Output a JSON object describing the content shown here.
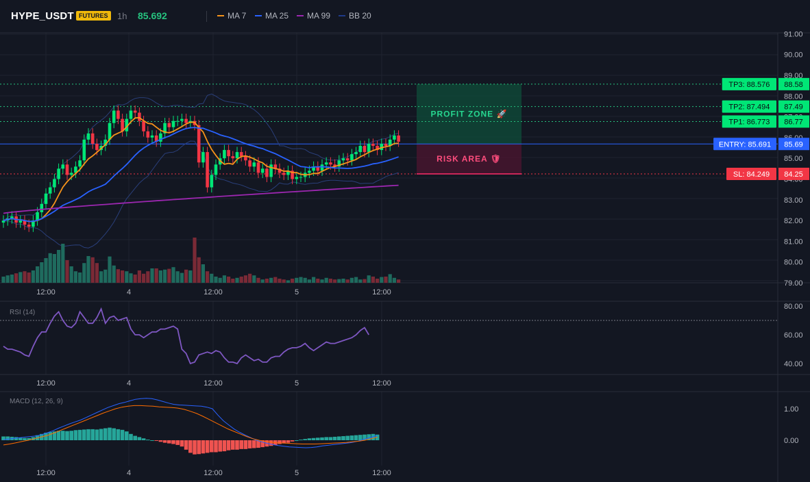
{
  "header": {
    "symbol": "HYPE_USDT",
    "badge": "FUTURES",
    "interval": "1h",
    "price": "85.692",
    "legend": [
      {
        "label": "MA 7",
        "color": "#f7931a"
      },
      {
        "label": "MA 25",
        "color": "#2962ff"
      },
      {
        "label": "MA 99",
        "color": "#9c27b0"
      },
      {
        "label": "BB 20",
        "color": "#1e3a8a"
      }
    ]
  },
  "colors": {
    "up": "#26a69a",
    "down": "#ef5350",
    "candle_up": "#00e676",
    "candle_down": "#f23645",
    "bg": "#131722"
  },
  "zones": {
    "profit_label": "PROFIT ZONE 🚀",
    "risk_label": "RISK AREA 🛡"
  },
  "levels": {
    "tp3": {
      "tag": "TP3: 88.576",
      "axis": "88.58",
      "value": 88.576
    },
    "tp2": {
      "tag": "TP2: 87.494",
      "axis": "87.49",
      "value": 87.494
    },
    "tp1": {
      "tag": "TP1: 86.773",
      "axis": "86.77",
      "value": 86.773
    },
    "entry": {
      "tag": "ENTRY: 85.691",
      "axis": "85.69",
      "value": 85.691
    },
    "sl": {
      "tag": "SL: 84.249",
      "axis": "84.25",
      "value": 84.249
    }
  },
  "x_labels": [
    "12:00",
    "4",
    "12:00",
    "5",
    "12:00"
  ],
  "chart_data": [
    {
      "type": "candlestick",
      "title": "HYPE_USDT 1h",
      "ylim": [
        79.0,
        91.0
      ],
      "y_ticks": [
        "91.00",
        "90.00",
        "89.00",
        "88.00",
        "87.00",
        "86.00",
        "85.00",
        "84.00",
        "83.00",
        "82.00",
        "81.00",
        "80.00",
        "79.00"
      ],
      "close": [
        82.0,
        82.1,
        82.2,
        81.9,
        82.0,
        81.8,
        81.7,
        82.0,
        82.4,
        82.8,
        83.3,
        83.6,
        84.0,
        84.5,
        84.7,
        84.2,
        84.3,
        84.6,
        84.9,
        85.9,
        86.2,
        85.7,
        85.4,
        85.6,
        85.9,
        86.7,
        87.3,
        86.9,
        86.3,
        86.9,
        87.3,
        87.2,
        86.8,
        86.3,
        86.0,
        86.1,
        85.8,
        86.2,
        86.7,
        86.5,
        86.8,
        86.8,
        86.9,
        86.7,
        86.8,
        86.6,
        84.8,
        85.3,
        83.6,
        84.2,
        84.7,
        85.0,
        85.4,
        85.1,
        85.0,
        85.3,
        85.1,
        84.9,
        84.6,
        84.8,
        84.3,
        84.5,
        84.1,
        84.7,
        84.5,
        84.3,
        84.2,
        84.4,
        84.0,
        84.1,
        84.1,
        84.3,
        84.4,
        84.6,
        84.4,
        84.7,
        84.8,
        84.7,
        84.6,
        84.9,
        85.0,
        84.9,
        85.2,
        85.3,
        85.6,
        85.3,
        85.7,
        85.6,
        85.4,
        85.7,
        85.6,
        85.9,
        86.1,
        85.8
      ],
      "volume": [
        15,
        18,
        20,
        23,
        26,
        28,
        25,
        30,
        40,
        50,
        60,
        72,
        70,
        80,
        95,
        55,
        40,
        28,
        25,
        48,
        65,
        62,
        48,
        28,
        32,
        64,
        42,
        33,
        30,
        28,
        23,
        20,
        30,
        22,
        28,
        35,
        35,
        30,
        32,
        34,
        38,
        28,
        24,
        32,
        30,
        110,
        62,
        45,
        28,
        22,
        15,
        12,
        18,
        15,
        10,
        12,
        15,
        18,
        22,
        18,
        12,
        8,
        10,
        12,
        14,
        10,
        8,
        6,
        10,
        12,
        14,
        12,
        8,
        14,
        10,
        8,
        12,
        10,
        8,
        9,
        10,
        8,
        12,
        14,
        8,
        9,
        18,
        15,
        10,
        14,
        15,
        21,
        12,
        8
      ],
      "series": [
        {
          "name": "MA 7"
        },
        {
          "name": "MA 25"
        },
        {
          "name": "MA 99"
        },
        {
          "name": "BB 20"
        }
      ]
    },
    {
      "type": "line",
      "title": "RSI (14)",
      "ylim": [
        33,
        83
      ],
      "y_ticks": [
        "80.00",
        "60.00",
        "40.00"
      ],
      "overbought": 70,
      "values": [
        52,
        50,
        50,
        49,
        48,
        46,
        45,
        52,
        58,
        62,
        62,
        68,
        73,
        76,
        70,
        66,
        65,
        68,
        76,
        72,
        68,
        68,
        72,
        78,
        68,
        72,
        73,
        70,
        71,
        72,
        64,
        60,
        60,
        58,
        60,
        62,
        62,
        64,
        64,
        65,
        66,
        64,
        50,
        47,
        40,
        41,
        46,
        47,
        48,
        47,
        49,
        48,
        44,
        41,
        41,
        40,
        44,
        46,
        44,
        42,
        43,
        41,
        41,
        44,
        45,
        45,
        48,
        50,
        51,
        51,
        52,
        54,
        51,
        49,
        51,
        53,
        55,
        54,
        54,
        55,
        56,
        57,
        58,
        60,
        63,
        65,
        60
      ]
    },
    {
      "type": "bar",
      "title": "MACD (12, 26, 9)",
      "ylim": [
        -0.8,
        1.7
      ],
      "y_ticks": [
        "1.00",
        "0.00"
      ],
      "histogram": [
        0.12,
        0.12,
        0.11,
        0.1,
        0.08,
        0.07,
        0.07,
        0.1,
        0.16,
        0.2,
        0.24,
        0.26,
        0.28,
        0.3,
        0.3,
        0.29,
        0.3,
        0.32,
        0.33,
        0.34,
        0.35,
        0.35,
        0.34,
        0.36,
        0.38,
        0.4,
        0.38,
        0.35,
        0.33,
        0.28,
        0.2,
        0.14,
        0.1,
        0.06,
        0.02,
        0.0,
        -0.02,
        -0.05,
        -0.08,
        -0.1,
        -0.12,
        -0.15,
        -0.2,
        -0.3,
        -0.4,
        -0.45,
        -0.44,
        -0.42,
        -0.4,
        -0.38,
        -0.38,
        -0.36,
        -0.35,
        -0.32,
        -0.3,
        -0.3,
        -0.28,
        -0.28,
        -0.26,
        -0.25,
        -0.24,
        -0.22,
        -0.2,
        -0.18,
        -0.15,
        -0.12,
        -0.1,
        -0.08,
        -0.04,
        0.0,
        0.02,
        0.04,
        0.06,
        0.07,
        0.08,
        0.09,
        0.1,
        0.1,
        0.11,
        0.12,
        0.13,
        0.14,
        0.15,
        0.16,
        0.17,
        0.18,
        0.19,
        0.2,
        0.18
      ],
      "series": [
        {
          "values": [
            0.02,
            0.04,
            0.06,
            0.08,
            0.1,
            0.12,
            0.14,
            0.18,
            0.24,
            0.3,
            0.38,
            0.45,
            0.52,
            0.58,
            0.64,
            0.72,
            0.8,
            0.88,
            0.96,
            1.04,
            1.1,
            1.16,
            1.2,
            1.25,
            1.3,
            1.32,
            1.33,
            1.32,
            1.28,
            1.23,
            1.18,
            1.14,
            1.12,
            1.11,
            1.1,
            1.09,
            1.08,
            1.05,
            1.0,
            0.8,
            0.62,
            0.48,
            0.35,
            0.25,
            0.16,
            0.08,
            0.0,
            -0.05,
            -0.1,
            -0.14,
            -0.17,
            -0.19,
            -0.21,
            -0.22,
            -0.23,
            -0.24,
            -0.23,
            -0.21,
            -0.18,
            -0.16,
            -0.14,
            -0.12,
            -0.1,
            -0.08,
            -0.05,
            0.0,
            0.05,
            0.1,
            0.15
          ]
        },
        {
          "values": [
            -0.15,
            -0.12,
            -0.08,
            -0.04,
            0.0,
            0.05,
            0.1,
            0.15,
            0.22,
            0.3,
            0.38,
            0.46,
            0.54,
            0.62,
            0.7,
            0.78,
            0.86,
            0.93,
            1.0,
            1.05,
            1.08,
            1.1,
            1.1,
            1.09,
            1.08,
            1.06,
            1.05,
            1.04,
            1.02,
            0.98,
            0.92,
            0.85,
            0.76,
            0.66,
            0.56,
            0.46,
            0.36,
            0.28,
            0.2,
            0.12,
            0.05,
            0.0,
            -0.04,
            -0.06,
            -0.08,
            -0.09,
            -0.1,
            -0.11,
            -0.12,
            -0.12,
            -0.12,
            -0.11,
            -0.1,
            -0.09,
            -0.08,
            -0.07,
            -0.05,
            -0.03,
            0.0,
            0.05,
            0.1
          ]
        }
      ]
    }
  ]
}
